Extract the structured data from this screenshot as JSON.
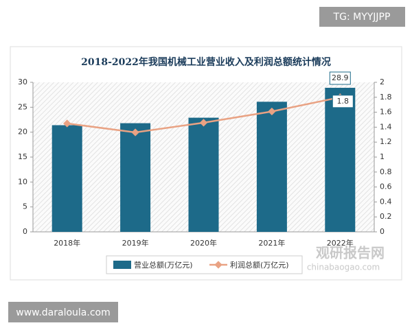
{
  "badge_top": "TG: MYYJJPP",
  "badge_bottom": "www.daraloula.com",
  "watermark": {
    "name": "观研报告网",
    "site": "chinabaogao.com"
  },
  "chart_data": {
    "type": "bar",
    "title": "2018-2022年我国机械工业营业收入及利润总额统计情况",
    "categories": [
      "2018年",
      "2019年",
      "2020年",
      "2021年",
      "2022年"
    ],
    "series": [
      {
        "name": "营业总额(万亿元)",
        "type": "bar",
        "color": "#1d6a89",
        "values": [
          21.4,
          21.8,
          22.9,
          26.1,
          28.9
        ],
        "value_labels": [
          null,
          null,
          null,
          null,
          "28.9"
        ]
      },
      {
        "name": "利润总额(万亿元)",
        "type": "line",
        "axis": "y2",
        "color": "#e9a283",
        "values": [
          1.45,
          1.33,
          1.46,
          1.61,
          1.8
        ],
        "value_labels": [
          null,
          null,
          null,
          null,
          "1.8"
        ]
      }
    ],
    "ylim": [
      0,
      30
    ],
    "yticks": [
      0,
      5,
      10,
      15,
      20,
      25,
      30
    ],
    "y2lim": [
      0,
      2
    ],
    "y2ticks": [
      0,
      0.2,
      0.4,
      0.6,
      0.8,
      1,
      1.2,
      1.4,
      1.6,
      1.8,
      2
    ],
    "legend": "bottom",
    "grid": false
  }
}
